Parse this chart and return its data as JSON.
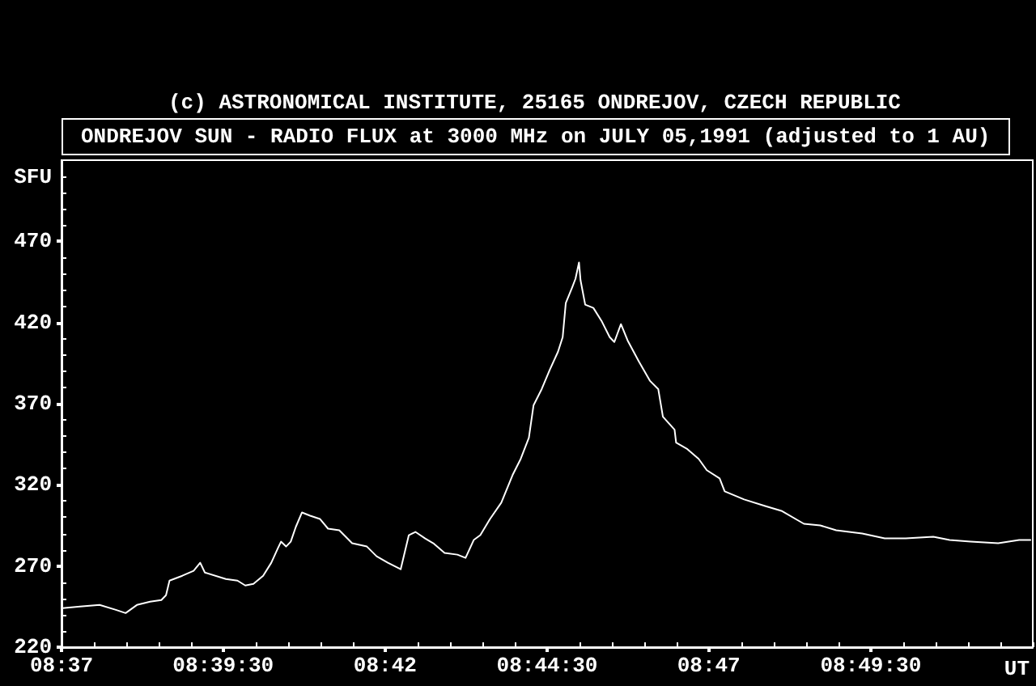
{
  "chart_data": {
    "type": "line",
    "title": "(c) ASTRONOMICAL INSTITUTE, 25165 ONDREJOV, CZECH REPUBLIC",
    "subtitle": "ONDREJOV SUN - RADIO FLUX at 3000 MHz on JULY 05,1991 (adjusted to 1 AU)",
    "xlabel": "UT",
    "ylabel": "SFU",
    "x": [
      8.617,
      8.6215,
      8.6265,
      8.6307,
      8.6332,
      8.6361,
      8.6395,
      8.6424,
      8.6436,
      8.6445,
      8.6478,
      8.6507,
      8.6524,
      8.6536,
      8.659,
      8.662,
      8.664,
      8.6661,
      8.6686,
      8.6707,
      8.6724,
      8.6732,
      8.6745,
      8.6757,
      8.677,
      8.6786,
      8.6807,
      8.6832,
      8.6853,
      8.6882,
      8.6915,
      8.6953,
      8.6978,
      8.7007,
      8.704,
      8.7061,
      8.7078,
      8.7103,
      8.7124,
      8.7153,
      8.7186,
      8.7207,
      8.7228,
      8.7245,
      8.727,
      8.7299,
      8.7328,
      8.7349,
      8.737,
      8.7382,
      8.7403,
      8.7424,
      8.7445,
      8.7457,
      8.7465,
      8.7482,
      8.749,
      8.7499,
      8.7503,
      8.7515,
      8.7536,
      8.7557,
      8.7578,
      8.759,
      8.7607,
      8.7624,
      8.7653,
      8.7682,
      8.7703,
      8.7715,
      8.7745,
      8.7749,
      8.7778,
      8.7807,
      8.7828,
      8.7861,
      8.7874,
      8.7924,
      8.7978,
      8.802,
      8.8078,
      8.812,
      8.8161,
      8.8228,
      8.8286,
      8.834,
      8.8411,
      8.8453,
      8.8507,
      8.8578,
      8.8632,
      8.8661
    ],
    "values": [
      244,
      245,
      246,
      243,
      241,
      246,
      248,
      249,
      252,
      261,
      264,
      267,
      272,
      266,
      262,
      261,
      258,
      259,
      264,
      272,
      281,
      285,
      282,
      285,
      294,
      303,
      301,
      299,
      293,
      292,
      284,
      282,
      276,
      272,
      268,
      289,
      291,
      287,
      284,
      278,
      277,
      275,
      286,
      289,
      299,
      309,
      326,
      336,
      349,
      369,
      379,
      391,
      402,
      411,
      432,
      442,
      447,
      457,
      446,
      431,
      429,
      421,
      411,
      408,
      419,
      409,
      396,
      384,
      379,
      362,
      354,
      346,
      342,
      336,
      329,
      324,
      316,
      311,
      307,
      304,
      296,
      295,
      292,
      290,
      287,
      287,
      288,
      286,
      285,
      284,
      286,
      286
    ],
    "color": "#ffffff",
    "xlim": [
      8.6167,
      8.8667
    ],
    "xticks": [
      {
        "value": 8.6167,
        "label": "08:37"
      },
      {
        "value": 8.625,
        "label": null
      },
      {
        "value": 8.6333,
        "label": null
      },
      {
        "value": 8.6417,
        "label": null
      },
      {
        "value": 8.65,
        "label": null
      },
      {
        "value": 8.6583,
        "label": "08:39:30"
      },
      {
        "value": 8.6667,
        "label": null
      },
      {
        "value": 8.675,
        "label": null
      },
      {
        "value": 8.6833,
        "label": null
      },
      {
        "value": 8.6917,
        "label": null
      },
      {
        "value": 8.7,
        "label": "08:42"
      },
      {
        "value": 8.7083,
        "label": null
      },
      {
        "value": 8.7167,
        "label": null
      },
      {
        "value": 8.725,
        "label": null
      },
      {
        "value": 8.7333,
        "label": null
      },
      {
        "value": 8.7417,
        "label": "08:44:30"
      },
      {
        "value": 8.75,
        "label": null
      },
      {
        "value": 8.7583,
        "label": null
      },
      {
        "value": 8.7667,
        "label": null
      },
      {
        "value": 8.775,
        "label": null
      },
      {
        "value": 8.7833,
        "label": "08:47"
      },
      {
        "value": 8.7917,
        "label": null
      },
      {
        "value": 8.8,
        "label": null
      },
      {
        "value": 8.8083,
        "label": null
      },
      {
        "value": 8.8167,
        "label": null
      },
      {
        "value": 8.825,
        "label": "08:49:30"
      },
      {
        "value": 8.8333,
        "label": null
      },
      {
        "value": 8.8417,
        "label": null
      },
      {
        "value": 8.85,
        "label": null
      },
      {
        "value": 8.8583,
        "label": null
      },
      {
        "value": 8.8667,
        "label": null
      }
    ],
    "ylim": [
      220,
      520
    ],
    "yticks": [
      220,
      {
        "value": 230,
        "label": null
      },
      {
        "value": 240,
        "label": null
      },
      {
        "value": 250,
        "label": null
      },
      {
        "value": 260,
        "label": null
      },
      270,
      {
        "value": 280,
        "label": null
      },
      {
        "value": 290,
        "label": null
      },
      {
        "value": 300,
        "label": null
      },
      {
        "value": 310,
        "label": null
      },
      320,
      {
        "value": 330,
        "label": null
      },
      {
        "value": 340,
        "label": null
      },
      {
        "value": 350,
        "label": null
      },
      {
        "value": 360,
        "label": null
      },
      370,
      {
        "value": 380,
        "label": null
      },
      {
        "value": 390,
        "label": null
      },
      {
        "value": 400,
        "label": null
      },
      {
        "value": 410,
        "label": null
      },
      420,
      {
        "value": 430,
        "label": null
      },
      {
        "value": 440,
        "label": null
      },
      {
        "value": 450,
        "label": null
      },
      {
        "value": 460,
        "label": null
      },
      470,
      {
        "value": 480,
        "label": null
      },
      {
        "value": 490,
        "label": null
      },
      {
        "value": 500,
        "label": null
      },
      {
        "value": 510,
        "label": null
      }
    ],
    "grid": false,
    "marker": "none",
    "line_style": "solid"
  }
}
